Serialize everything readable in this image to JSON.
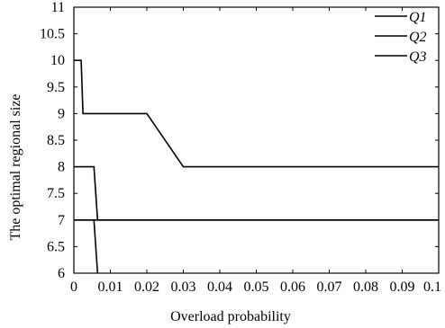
{
  "chart_data": {
    "type": "line",
    "xlabel": "Overload probability",
    "ylabel": "The optimal regional size",
    "xlim": [
      0,
      0.1
    ],
    "ylim": [
      6,
      11
    ],
    "xticks": [
      0,
      0.01,
      0.02,
      0.03,
      0.04,
      0.05,
      0.06,
      0.07,
      0.08,
      0.09,
      0.1
    ],
    "xtick_labels": [
      "0",
      "0.01",
      "0.02",
      "0.03",
      "0.04",
      "0.05",
      "0.06",
      "0.07",
      "0.08",
      "0.09",
      "0.1"
    ],
    "yticks": [
      6,
      6.5,
      7,
      7.5,
      8,
      8.5,
      9,
      9.5,
      10,
      10.5,
      11
    ],
    "ytick_labels": [
      "6",
      "6.5",
      "7",
      "7.5",
      "8",
      "8.5",
      "9",
      "9.5",
      "10",
      "10.5",
      "11"
    ],
    "legend_position": "top-right",
    "grid": false,
    "series": [
      {
        "name": "Q1",
        "x": [
          0,
          0.002,
          0.0025,
          0.02,
          0.03,
          0.1
        ],
        "y": [
          10,
          10,
          9,
          9,
          8,
          8
        ]
      },
      {
        "name": "Q2",
        "x": [
          0,
          0.1
        ],
        "y": [
          7,
          7
        ]
      },
      {
        "name": "Q3",
        "x": [
          0,
          0.0055,
          0.0065,
          0.1
        ],
        "y": [
          8,
          8,
          7,
          7
        ]
      },
      {
        "name": "",
        "x": [
          0,
          0.0055,
          0.0065
        ],
        "y": [
          7,
          7,
          6
        ]
      }
    ]
  }
}
